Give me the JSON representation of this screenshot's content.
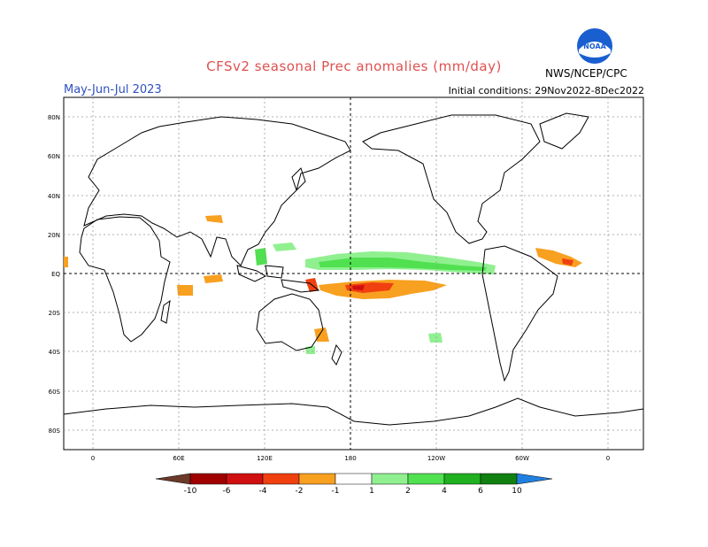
{
  "header": {
    "title": "CFSv2 seasonal Prec anomalies (mm/day)",
    "season": "May-Jun-Jul 2023",
    "initial_conditions": "Initial conditions: 29Nov2022-8Dec2022",
    "agency": "NWS/NCEP/CPC",
    "logo_text": "NOAA"
  },
  "map": {
    "lat_labels": [
      "80N",
      "60N",
      "40N",
      "20N",
      "EQ",
      "20S",
      "40S",
      "60S",
      "80S"
    ],
    "lon_labels": [
      "0",
      "60E",
      "120E",
      "180",
      "120W",
      "60W",
      "0"
    ]
  },
  "legend": {
    "labels": [
      "-10",
      "-6",
      "-4",
      "-2",
      "-1",
      "1",
      "2",
      "4",
      "6",
      "10"
    ],
    "colors": {
      "lt_m10": "#6b3a2a",
      "m10_m6": "#a00000",
      "m6_m4": "#d01010",
      "m4_m2": "#f04010",
      "m2_m1": "#f8a020",
      "neutral": "#ffffff",
      "p1_p2": "#90f090",
      "p2_p4": "#50e050",
      "p4_p6": "#20b020",
      "p6_p10": "#108010",
      "gt_p10": "#2080e0"
    }
  }
}
